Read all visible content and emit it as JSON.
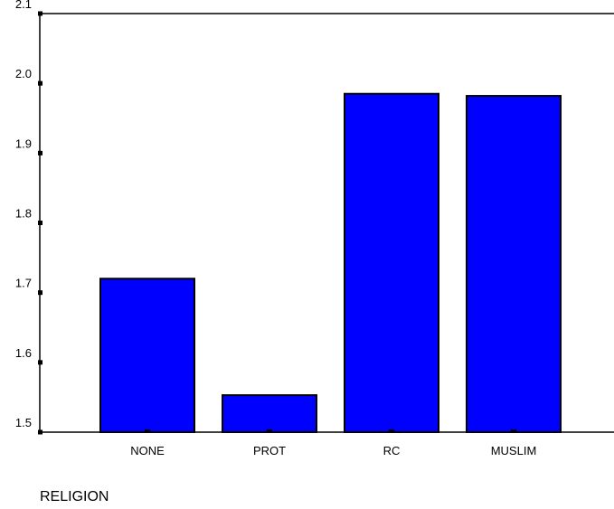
{
  "chart_data": {
    "type": "bar",
    "categories": [
      "NONE",
      "PROT",
      "RC",
      "MUSLIM"
    ],
    "values": [
      1.72,
      1.553,
      1.985,
      1.982
    ],
    "xlabel": "RELIGION",
    "ylabel": "",
    "ylim": [
      1.5,
      2.1
    ],
    "yticks": [
      "1.5",
      "1.6",
      "1.7",
      "1.8",
      "1.9",
      "2.0",
      "2.1"
    ],
    "grid": false,
    "bar_color": "#0000ff",
    "bar_edge_color": "#000000"
  }
}
